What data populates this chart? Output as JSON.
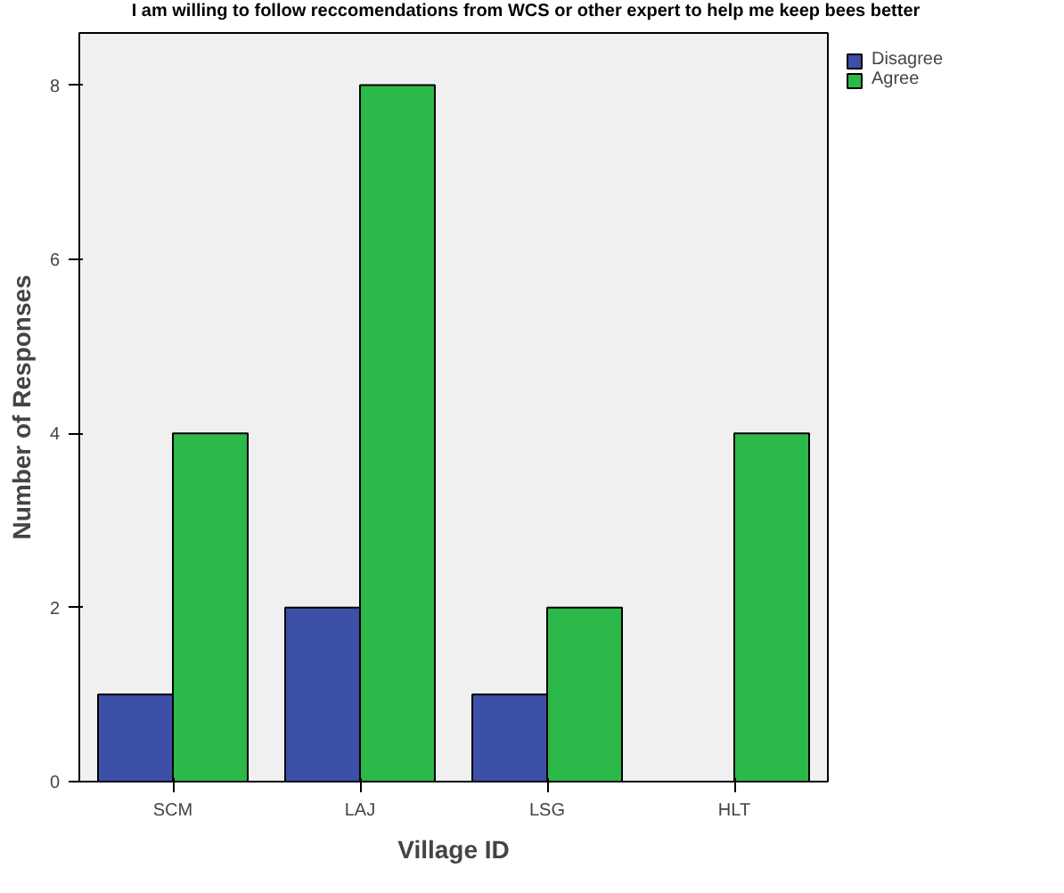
{
  "chart_data": {
    "type": "bar",
    "title": "I am willing to follow reccomendations from WCS or other expert to help me keep bees better",
    "xlabel": "Village ID",
    "ylabel": "Number of Responses",
    "categories": [
      "SCM",
      "LAJ",
      "LSG",
      "HLT"
    ],
    "series": [
      {
        "name": "Disagree",
        "color": "#3c50a8",
        "values": [
          1,
          2,
          1,
          null
        ]
      },
      {
        "name": "Agree",
        "color": "#2db84a",
        "values": [
          4,
          8,
          2,
          4
        ]
      }
    ],
    "ylim": [
      0,
      8.6
    ],
    "yticks": [
      0,
      2,
      4,
      6,
      8
    ],
    "grid": false,
    "legend": "top right"
  }
}
